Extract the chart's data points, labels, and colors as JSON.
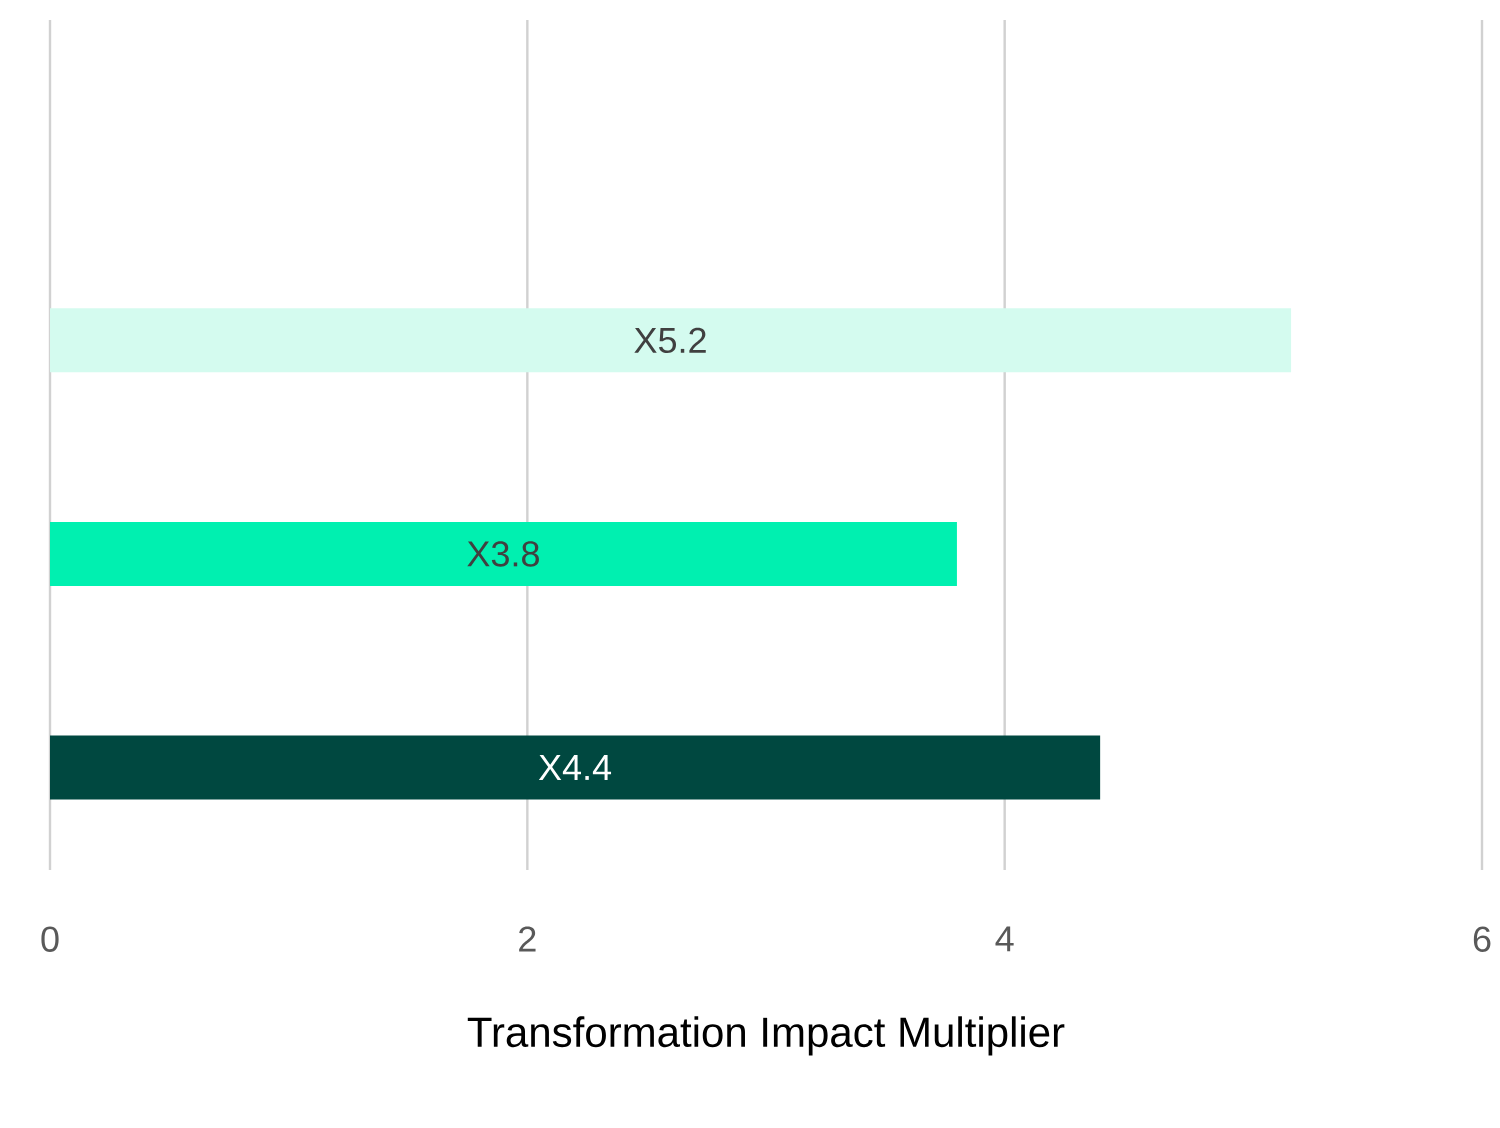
{
  "chart_data": {
    "type": "bar",
    "orientation": "horizontal",
    "xlabel": "Transformation Impact Multiplier",
    "categories": [
      null,
      null,
      null
    ],
    "values": [
      5.2,
      3.8,
      4.4
    ],
    "colors": [
      "#d4fbef",
      "#00f0b0",
      "#004840"
    ],
    "value_labels": [
      "X5.2",
      "X3.8",
      "X4.4"
    ],
    "xlim": [
      0,
      6
    ],
    "xticks": [
      0,
      2,
      4,
      6
    ],
    "grid": "x"
  }
}
